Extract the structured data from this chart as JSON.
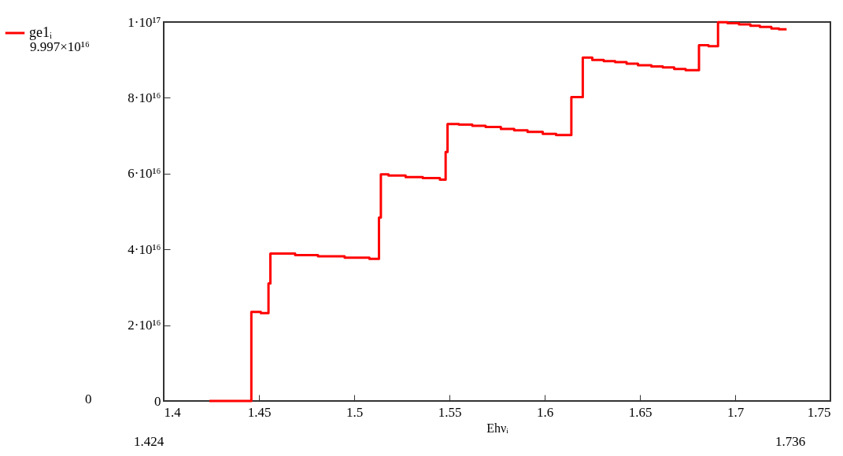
{
  "chart_data": {
    "type": "step",
    "xlabel": "Ehνᵢ",
    "x": [
      1.424,
      1.446,
      1.451,
      1.455,
      1.456,
      1.469,
      1.481,
      1.495,
      1.508,
      1.513,
      1.514,
      1.518,
      1.527,
      1.536,
      1.545,
      1.548,
      1.549,
      1.555,
      1.562,
      1.569,
      1.577,
      1.584,
      1.591,
      1.599,
      1.606,
      1.614,
      1.62,
      1.625,
      1.631,
      1.637,
      1.643,
      1.649,
      1.656,
      1.662,
      1.668,
      1.674,
      1.681,
      1.686,
      1.691,
      1.696,
      1.702,
      1.708,
      1.713,
      1.719,
      1.723,
      1.727
    ],
    "series": [
      {
        "name": "ge1ᵢ",
        "color": "#ff0000",
        "values": [
          0,
          2.35e+16,
          2.32e+16,
          3.1e+16,
          3.89e+16,
          3.85e+16,
          3.82e+16,
          3.78e+16,
          3.75e+16,
          4.84e+16,
          5.98e+16,
          5.95e+16,
          5.91e+16,
          5.88e+16,
          5.84e+16,
          6.57e+16,
          7.31e+16,
          7.29e+16,
          7.26e+16,
          7.23e+16,
          7.18e+16,
          7.14e+16,
          7.1e+16,
          7.05e+16,
          7.02e+16,
          8.02e+16,
          9.06e+16,
          9e+16,
          8.97e+16,
          8.94e+16,
          8.9e+16,
          8.86e+16,
          8.83e+16,
          8.8e+16,
          8.76e+16,
          8.73e+16,
          9.39e+16,
          9.36e+16,
          9.997e+16,
          9.97e+16,
          9.94e+16,
          9.9e+16,
          9.87e+16,
          9.83e+16,
          9.81e+16,
          9.81e+16
        ]
      }
    ],
    "xlim": [
      1.4,
      1.75
    ],
    "xticks": [
      1.4,
      1.45,
      1.5,
      1.55,
      1.6,
      1.65,
      1.7,
      1.75
    ],
    "ylim": [
      0,
      1e+17
    ],
    "yticks": [
      0,
      {
        "value": 2e+16,
        "label": "2·10¹⁶"
      },
      {
        "value": 4e+16,
        "label": "4·10¹⁶"
      },
      {
        "value": 6e+16,
        "label": "6·10¹⁶"
      },
      {
        "value": 8e+16,
        "label": "8·10¹⁶"
      },
      {
        "value": 1e+17,
        "label": "1·10¹⁷"
      }
    ],
    "annotations": [
      "9.997×10¹⁶",
      "0",
      "1.424",
      "1.736"
    ],
    "legend": "left",
    "grid": false,
    "marker": "none",
    "line_style": "solid"
  }
}
